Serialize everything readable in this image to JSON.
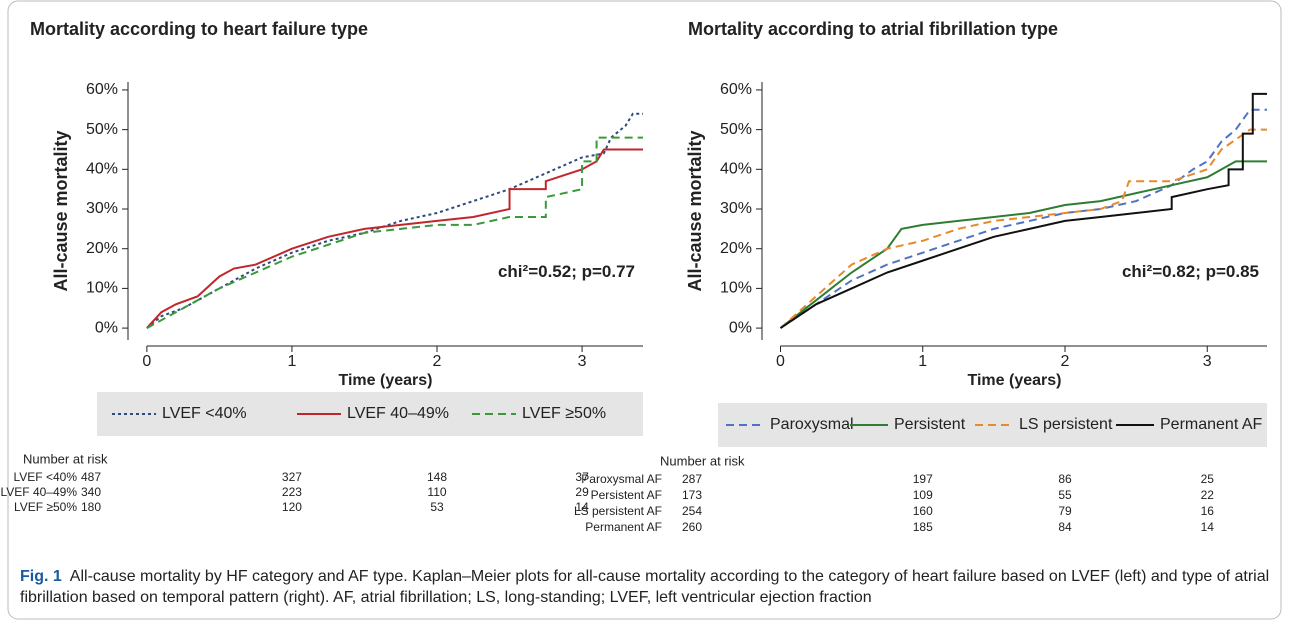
{
  "chart_data": [
    {
      "type": "line",
      "title": "Mortality according to heart failure type",
      "xlabel": "Time (years)",
      "ylabel": "All-cause mortality",
      "xlim": [
        -0.13,
        3.42
      ],
      "ylim": [
        -3,
        62
      ],
      "xticks": [
        0,
        1,
        2,
        3
      ],
      "yticks": [
        {
          "value": 0,
          "label": "0%"
        },
        {
          "value": 10,
          "label": "10%"
        },
        {
          "value": 20,
          "label": "20%"
        },
        {
          "value": 30,
          "label": "30%"
        },
        {
          "value": 40,
          "label": "40%"
        },
        {
          "value": 50,
          "label": "50%"
        },
        {
          "value": 60,
          "label": "60%"
        }
      ],
      "annotation": "chi²=0.52; p=0.77",
      "legend": "bottom",
      "series": [
        {
          "name": "LVEF <40%",
          "color": "#2d4b7c",
          "dash": "dotted",
          "x": [
            0,
            0.1,
            0.25,
            0.5,
            0.75,
            1,
            1.25,
            1.5,
            1.75,
            2,
            2.25,
            2.5,
            2.75,
            3,
            3.15,
            3.2,
            3.3,
            3.35,
            3.42
          ],
          "values": [
            0,
            3,
            5,
            10,
            15,
            19,
            22,
            24,
            27,
            29,
            32,
            35,
            39,
            43,
            44,
            48,
            51,
            54,
            54
          ]
        },
        {
          "name": "LVEF 40–49%",
          "color": "#c0272d",
          "dash": "solid",
          "x": [
            0,
            0.1,
            0.2,
            0.35,
            0.5,
            0.6,
            0.75,
            1,
            1.25,
            1.5,
            1.75,
            2,
            2.25,
            2.5,
            2.5,
            2.75,
            2.75,
            3,
            3.1,
            3.15,
            3.42
          ],
          "values": [
            0,
            4,
            6,
            8,
            13,
            15,
            16,
            20,
            23,
            25,
            26,
            27,
            28,
            30,
            35,
            35,
            37,
            40,
            42,
            45,
            45
          ]
        },
        {
          "name": "LVEF ≥50%",
          "color": "#3a9a3a",
          "dash": "dashed",
          "x": [
            0,
            0.25,
            0.5,
            0.75,
            1,
            1.25,
            1.5,
            1.75,
            2,
            2.25,
            2.5,
            2.75,
            2.75,
            3,
            3,
            3.1,
            3.1,
            3.42
          ],
          "values": [
            0,
            5,
            10,
            14,
            18,
            21,
            24,
            25,
            26,
            26,
            28,
            28,
            33,
            35,
            42,
            42,
            48,
            48
          ]
        }
      ],
      "risk_table": {
        "title": "Number at risk",
        "rows": [
          {
            "label": "LVEF <40%",
            "values": [
              487,
              327,
              148,
              37
            ]
          },
          {
            "label": "LVEF 40–49%",
            "values": [
              340,
              223,
              110,
              29
            ]
          },
          {
            "label": "LVEF ≥50%",
            "values": [
              180,
              120,
              53,
              14
            ]
          }
        ]
      }
    },
    {
      "type": "line",
      "title": "Mortality according to atrial fibrillation type",
      "xlabel": "Time (years)",
      "ylabel": "All-cause mortality",
      "xlim": [
        -0.13,
        3.42
      ],
      "ylim": [
        -3,
        62
      ],
      "xticks": [
        0,
        1,
        2,
        3
      ],
      "yticks": [
        {
          "value": 0,
          "label": "0%"
        },
        {
          "value": 10,
          "label": "10%"
        },
        {
          "value": 20,
          "label": "20%"
        },
        {
          "value": 30,
          "label": "30%"
        },
        {
          "value": 40,
          "label": "40%"
        },
        {
          "value": 50,
          "label": "50%"
        },
        {
          "value": 60,
          "label": "60%"
        }
      ],
      "annotation": "chi²=0.82; p=0.85",
      "legend": "bottom",
      "series": [
        {
          "name": "Paroxysmal",
          "color": "#4f73c4",
          "dash": "dashed",
          "x": [
            0,
            0.25,
            0.5,
            0.75,
            1,
            1.25,
            1.5,
            1.75,
            2,
            2.25,
            2.5,
            2.75,
            2.9,
            3,
            3.1,
            3.2,
            3.3,
            3.42
          ],
          "values": [
            0,
            6,
            12,
            16,
            19,
            22,
            25,
            27,
            29,
            30,
            32,
            36,
            40,
            42,
            47,
            50,
            55,
            55
          ]
        },
        {
          "name": "Persistent",
          "color": "#2e7d32",
          "dash": "solid",
          "x": [
            0,
            0.25,
            0.5,
            0.75,
            0.85,
            1,
            1.25,
            1.5,
            1.75,
            2,
            2.25,
            2.5,
            2.75,
            3,
            3.1,
            3.2,
            3.42
          ],
          "values": [
            0,
            7,
            14,
            20,
            25,
            26,
            27,
            28,
            29,
            31,
            32,
            34,
            36,
            38,
            40,
            42,
            42
          ]
        },
        {
          "name": "LS persistent",
          "color": "#e8892a",
          "dash": "dashed",
          "x": [
            0,
            0.25,
            0.5,
            0.75,
            1,
            1.25,
            1.5,
            1.75,
            2,
            2.25,
            2.4,
            2.45,
            2.75,
            3,
            3.1,
            3.3,
            3.42
          ],
          "values": [
            0,
            8,
            16,
            20,
            22,
            25,
            27,
            28,
            29,
            30,
            32,
            37,
            37,
            40,
            45,
            50,
            50
          ]
        },
        {
          "name": "Permanent AF",
          "color": "#111111",
          "dash": "solid",
          "x": [
            0,
            0.25,
            0.5,
            0.75,
            1,
            1.25,
            1.5,
            1.75,
            2,
            2.25,
            2.5,
            2.75,
            2.75,
            3,
            3.15,
            3.15,
            3.25,
            3.25,
            3.32,
            3.32,
            3.42
          ],
          "values": [
            0,
            6,
            10,
            14,
            17,
            20,
            23,
            25,
            27,
            28,
            29,
            30,
            33,
            35,
            36,
            40,
            40,
            49,
            49,
            59,
            59
          ]
        }
      ],
      "risk_table": {
        "title": "Number at risk",
        "rows": [
          {
            "label": "Paroxysmal AF",
            "values": [
              287,
              197,
              86,
              25
            ]
          },
          {
            "label": "Persistent AF",
            "values": [
              173,
              109,
              55,
              22
            ]
          },
          {
            "label": "LS persistent AF",
            "values": [
              254,
              160,
              79,
              16
            ]
          },
          {
            "label": "Permanent AF",
            "values": [
              260,
              185,
              84,
              14
            ]
          }
        ]
      }
    }
  ],
  "caption": {
    "label": "Fig. 1",
    "text": "All-cause mortality by HF category and AF type. Kaplan–Meier plots for all-cause mortality according to the category of heart failure based on LVEF (left) and type of atrial fibrillation based on temporal pattern (right). AF, atrial fibrillation; LS, long-standing; LVEF, left ventricular ejection fraction"
  }
}
